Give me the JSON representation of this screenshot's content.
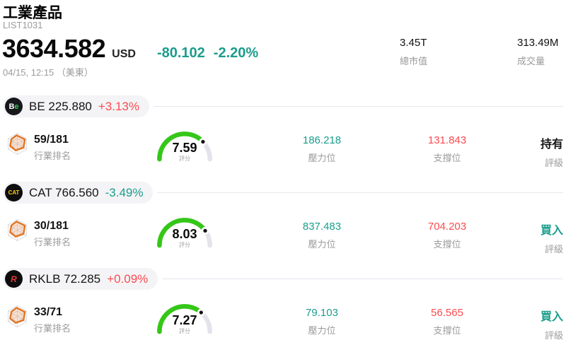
{
  "header": {
    "title": "工業產品",
    "subtitle": "LIST1031",
    "price": "3634.582",
    "currency": "USD",
    "change": "-80.102",
    "change_pct": "-2.20%",
    "change_direction": "down",
    "timestamp": "04/15, 12:15 （美東）",
    "stats": [
      {
        "value": "3.45T",
        "label": "總市值"
      },
      {
        "value": "313.49M",
        "label": "成交量"
      }
    ]
  },
  "colors": {
    "up": "#fa4b50",
    "down": "#1a9d8c",
    "neutral": "#141414",
    "gauge_green": "#35c718",
    "gauge_track": "#e3e3ec"
  },
  "labels": {
    "rank": "行業排名",
    "score": "評分",
    "resistance": "壓力位",
    "support": "支撐位",
    "rating": "評級"
  },
  "stocks": [
    {
      "ticker": "BE",
      "name_price": "BE 225.880",
      "change": "+3.13%",
      "direction": "up",
      "logo_text": "Be",
      "logo_bg": "#17181c",
      "logo_fg": "#ffffff",
      "logo_accent": "#34c759",
      "rank": "59/181",
      "score": 7.59,
      "score_text": "7.59",
      "resistance": "186.218",
      "support": "131.843",
      "rating": "持有",
      "rating_tone": "neutral"
    },
    {
      "ticker": "CAT",
      "name_price": "CAT 766.560",
      "change": "-3.49%",
      "direction": "down",
      "logo_text": "CAT",
      "logo_bg": "#0d0d0d",
      "logo_fg": "#ffcd11",
      "logo_accent": "#ffcd11",
      "rank": "30/181",
      "score": 8.03,
      "score_text": "8.03",
      "resistance": "837.483",
      "support": "704.203",
      "rating": "買入",
      "rating_tone": "down"
    },
    {
      "ticker": "RKLB",
      "name_price": "RKLB 72.285",
      "change": "+0.09%",
      "direction": "up",
      "logo_text": "R",
      "logo_bg": "#0d0d0d",
      "logo_fg": "#e03a3a",
      "logo_accent": "#e03a3a",
      "rank": "33/71",
      "score": 7.27,
      "score_text": "7.27",
      "resistance": "79.103",
      "support": "56.565",
      "rating": "買入",
      "rating_tone": "down"
    }
  ]
}
